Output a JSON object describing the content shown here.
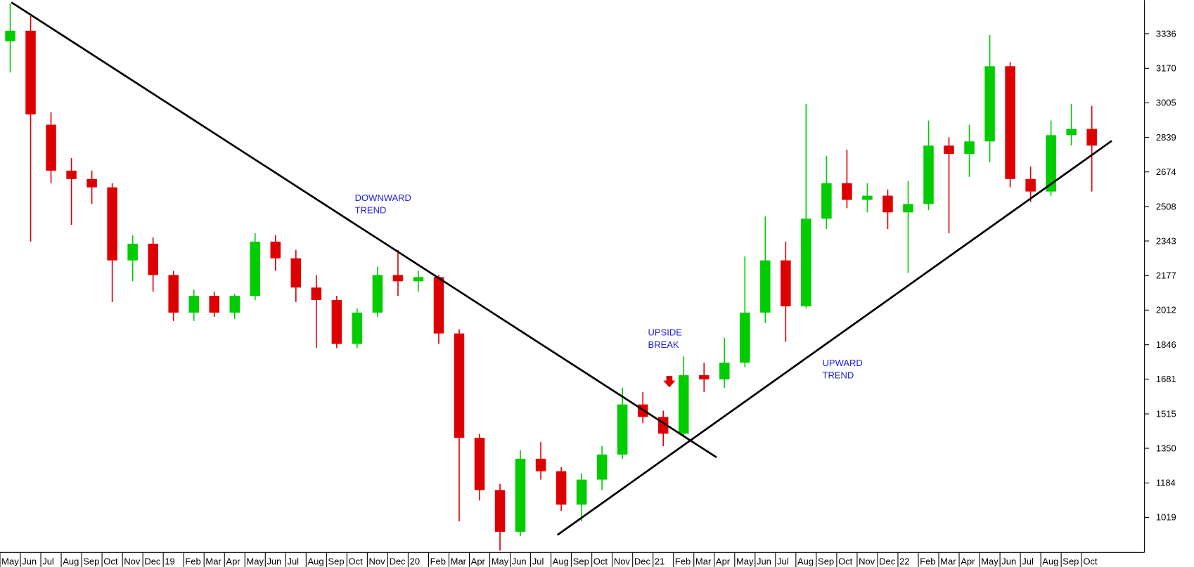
{
  "chart_data": {
    "type": "candlestick",
    "categories": [
      "May",
      "Jun",
      "Jul",
      "Aug",
      "Sep",
      "Oct",
      "Nov",
      "Dec",
      "19",
      "Feb",
      "Mar",
      "Apr",
      "May",
      "Jun",
      "Jul",
      "Aug",
      "Sep",
      "Oct",
      "Nov",
      "Dec",
      "20",
      "Feb",
      "Mar",
      "Apr",
      "May",
      "Jun",
      "Jul",
      "Aug",
      "Sep",
      "Oct",
      "Nov",
      "Dec",
      "21",
      "Feb",
      "Mar",
      "Apr",
      "May",
      "Jun",
      "Jul",
      "Aug",
      "Sep",
      "Oct",
      "Nov",
      "Dec",
      "22",
      "Feb",
      "Mar",
      "Apr",
      "May",
      "Jun",
      "Jul",
      "Aug",
      "Sep",
      "Oct"
    ],
    "open": [
      3300,
      3350,
      2900,
      2680,
      2640,
      2600,
      2250,
      2330,
      2180,
      2000,
      2080,
      2000,
      2080,
      2340,
      2260,
      2120,
      2060,
      1850,
      2000,
      2180,
      2150,
      2170,
      1900,
      1400,
      1150,
      950,
      1300,
      1240,
      1080,
      1200,
      1320,
      1560,
      1500,
      1420,
      1700,
      1680,
      1760,
      2000,
      2250,
      2030,
      2450,
      2620,
      2540,
      2560,
      2480,
      2520,
      2800,
      2760,
      2820,
      3180,
      2640,
      2580,
      2850,
      2880
    ],
    "high": [
      3480,
      3420,
      2960,
      2740,
      2680,
      2620,
      2370,
      2360,
      2200,
      2110,
      2100,
      2090,
      2380,
      2370,
      2300,
      2180,
      2080,
      2020,
      2220,
      2300,
      2200,
      2180,
      1920,
      1420,
      1180,
      1340,
      1380,
      1260,
      1230,
      1360,
      1640,
      1620,
      1530,
      1790,
      1760,
      1880,
      2270,
      2460,
      2340,
      3000,
      2750,
      2780,
      2620,
      2590,
      2630,
      2920,
      2840,
      2900,
      3330,
      3200,
      2700,
      2920,
      3000,
      2990
    ],
    "low": [
      3150,
      2340,
      2620,
      2420,
      2520,
      2050,
      2150,
      2100,
      1960,
      1960,
      1980,
      1970,
      2060,
      2200,
      2050,
      1830,
      1830,
      1830,
      1980,
      2080,
      2100,
      1850,
      1000,
      1100,
      860,
      930,
      1200,
      1050,
      1000,
      1150,
      1300,
      1470,
      1360,
      1410,
      1620,
      1640,
      1740,
      1950,
      1860,
      2020,
      2400,
      2500,
      2480,
      2400,
      2190,
      2490,
      2380,
      2650,
      2720,
      2600,
      2530,
      2560,
      2800,
      2580
    ],
    "close": [
      3350,
      2950,
      2680,
      2640,
      2600,
      2250,
      2330,
      2180,
      2000,
      2080,
      2000,
      2080,
      2340,
      2260,
      2120,
      2060,
      1850,
      2000,
      2180,
      2150,
      2170,
      1900,
      1400,
      1150,
      950,
      1300,
      1240,
      1080,
      1200,
      1320,
      1560,
      1500,
      1420,
      1700,
      1680,
      1760,
      2000,
      2250,
      2030,
      2450,
      2620,
      2540,
      2560,
      2480,
      2520,
      2800,
      2760,
      2820,
      3180,
      2640,
      2580,
      2850,
      2880,
      2800
    ],
    "up_color": "#00cc00",
    "down_color": "#dd0000",
    "ylim": [
      851,
      3497
    ],
    "yticks": [
      1019,
      1184,
      1350,
      1515,
      1681,
      1846,
      2012,
      2177,
      2343,
      2508,
      2674,
      2839,
      3005,
      3170,
      3336
    ],
    "annotations": {
      "downward": [
        "DOWNWARD",
        "TREND"
      ],
      "upside": [
        "UPSIDE",
        "BREAK"
      ],
      "upward": [
        "UPWARD",
        "TREND"
      ]
    }
  }
}
